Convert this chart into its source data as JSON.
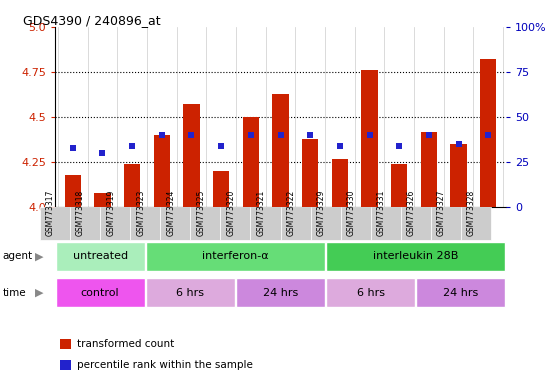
{
  "title": "GDS4390 / 240896_at",
  "samples": [
    "GSM773317",
    "GSM773318",
    "GSM773319",
    "GSM773323",
    "GSM773324",
    "GSM773325",
    "GSM773320",
    "GSM773321",
    "GSM773322",
    "GSM773329",
    "GSM773330",
    "GSM773331",
    "GSM773326",
    "GSM773327",
    "GSM773328"
  ],
  "transformed_count": [
    4.18,
    4.08,
    4.24,
    4.4,
    4.57,
    4.2,
    4.5,
    4.63,
    4.38,
    4.27,
    4.76,
    4.24,
    4.42,
    4.35,
    4.82
  ],
  "percentile_rank": [
    33,
    30,
    34,
    40,
    40,
    34,
    40,
    40,
    40,
    34,
    40,
    34,
    40,
    35,
    40
  ],
  "ylim_left": [
    4.0,
    5.0
  ],
  "ylim_right": [
    0,
    100
  ],
  "yticks_left": [
    4.0,
    4.25,
    4.5,
    4.75,
    5.0
  ],
  "yticks_right": [
    0,
    25,
    50,
    75,
    100
  ],
  "bar_color": "#CC2200",
  "dot_color": "#2222CC",
  "grid_color": "black",
  "agent_groups": [
    {
      "label": "untreated",
      "start": 0,
      "end": 3,
      "color": "#AAEEBB"
    },
    {
      "label": "interferon-α",
      "start": 3,
      "end": 9,
      "color": "#66DD77"
    },
    {
      "label": "interleukin 28B",
      "start": 9,
      "end": 15,
      "color": "#44CC55"
    }
  ],
  "time_groups": [
    {
      "label": "control",
      "start": 0,
      "end": 3,
      "color": "#EE55EE"
    },
    {
      "label": "6 hrs",
      "start": 3,
      "end": 6,
      "color": "#DDAADD"
    },
    {
      "label": "24 hrs",
      "start": 6,
      "end": 9,
      "color": "#CC88DD"
    },
    {
      "label": "6 hrs",
      "start": 9,
      "end": 12,
      "color": "#DDAADD"
    },
    {
      "label": "24 hrs",
      "start": 12,
      "end": 15,
      "color": "#CC88DD"
    }
  ],
  "legend_items": [
    {
      "color": "#CC2200",
      "label": "transformed count"
    },
    {
      "color": "#2222CC",
      "label": "percentile rank within the sample"
    }
  ],
  "left_tick_color": "#CC2200",
  "right_tick_color": "#0000BB",
  "tick_bg_color": "#CCCCCC",
  "plot_bg_color": "#FFFFFF",
  "fig_bg_color": "#FFFFFF"
}
